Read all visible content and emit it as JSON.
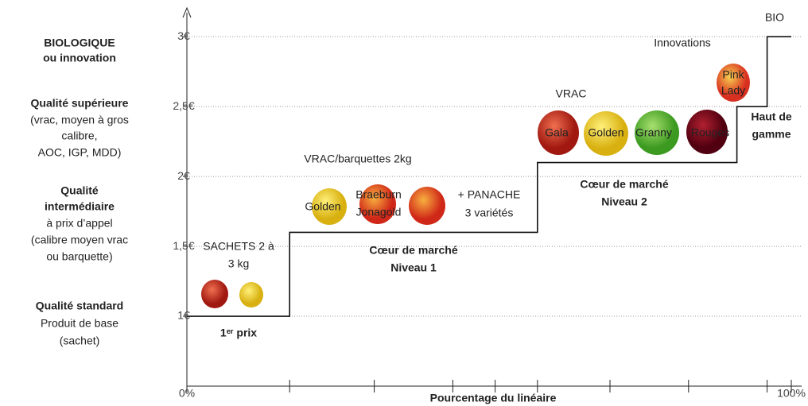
{
  "chart_data": {
    "type": "step",
    "xlabel": "Pourcentage du linéaire",
    "xlim": [
      0,
      100
    ],
    "xticks": [
      {
        "value": 0,
        "label": "0%"
      },
      {
        "value": 17,
        "label": null
      },
      {
        "value": 31,
        "label": null
      },
      {
        "value": 44,
        "label": null
      },
      {
        "value": 51,
        "label": null
      },
      {
        "value": 58,
        "label": null
      },
      {
        "value": 70,
        "label": null
      },
      {
        "value": 83,
        "label": null
      },
      {
        "value": 96,
        "label": null
      },
      {
        "value": 100,
        "label": "100%"
      }
    ],
    "ylim": [
      0.5,
      3.2
    ],
    "yticks": [
      {
        "value": 1,
        "label": "1€"
      },
      {
        "value": 1.5,
        "label": "1,5€"
      },
      {
        "value": 2,
        "label": "2€"
      },
      {
        "value": 2.5,
        "label": "2,5€"
      },
      {
        "value": 3,
        "label": "3€"
      }
    ],
    "grid": true,
    "color": "#111111",
    "x": [
      0,
      17,
      58,
      91,
      96,
      100
    ],
    "values": [
      1,
      1.6,
      2.1,
      2.5,
      3,
      3
    ],
    "levels": [
      [
        "BIOLOGIQUE",
        "ou innovation"
      ],
      [
        "Qualité supérieure",
        "(vrac, moyen à gros",
        "calibre,",
        "AOC, IGP, MDD)"
      ],
      [
        "Qualité",
        "intermédiaire",
        "à prix d’appel",
        "(calibre moyen vrac",
        "ou barquette)"
      ],
      [
        "Qualité standard",
        "Produit de base",
        "(sachet)"
      ]
    ],
    "annotations": [
      "SACHETS  2 à",
      "3 kg",
      "1ᵉʳ prix",
      "VRAC/barquettes 2kg",
      "+ PANACHE",
      "3 variétés",
      "Cœur de marché",
      "Niveau 1",
      "VRAC",
      "Cœur de marché",
      "Niveau 2",
      "Innovations",
      "BIO",
      "Haut de",
      "gamme"
    ],
    "apple_labels": [
      "Golden",
      "Braeburn",
      "Jonagold",
      "Gala",
      "Golden",
      "Granny",
      "Rouges",
      "Pink",
      "Lady"
    ]
  }
}
